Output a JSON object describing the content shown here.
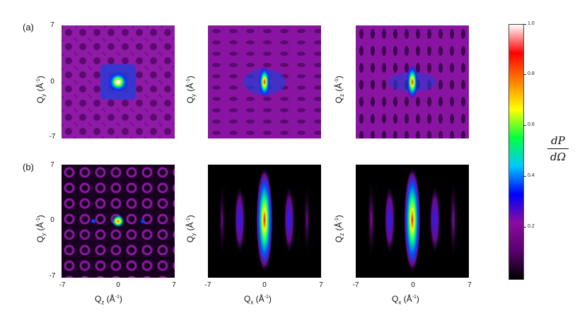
{
  "rows": {
    "a_label": "(a)",
    "b_label": "(b)"
  },
  "axis": {
    "min": "-7",
    "mid": "0",
    "max": "7",
    "qy": "Q",
    "qy_sub": "y",
    "qz": "Q",
    "qz_sub": "z",
    "qx": "Q",
    "qx_sub": "x",
    "unit": " (Å",
    "unit_exp": "-1",
    "unit_close": ")"
  },
  "colorbar": {
    "ticks": [
      "1.0",
      "0.8",
      "0.6",
      "0.4",
      "0.2"
    ],
    "label_num": "dP",
    "label_den": "dΩ",
    "stops": [
      "#000000",
      "#5a006e",
      "#8a0ca0",
      "#0000ff",
      "#00c8ff",
      "#00ff40",
      "#ffff00",
      "#ff8000",
      "#ff0000",
      "#ffffff"
    ]
  }
}
